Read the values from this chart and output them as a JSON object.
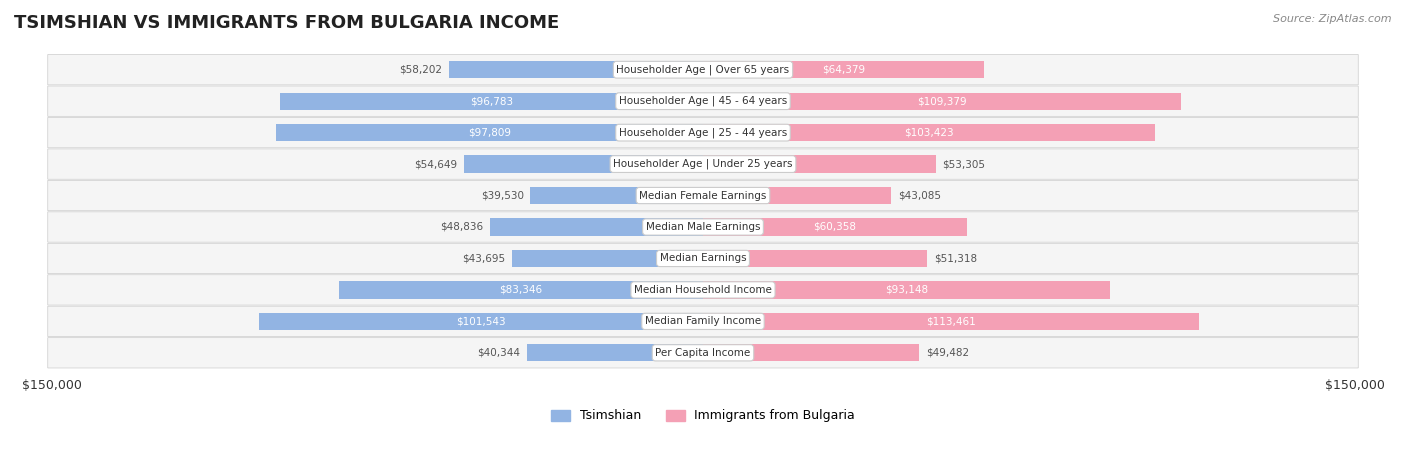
{
  "title": "TSIMSHIAN VS IMMIGRANTS FROM BULGARIA INCOME",
  "source": "Source: ZipAtlas.com",
  "categories": [
    "Per Capita Income",
    "Median Family Income",
    "Median Household Income",
    "Median Earnings",
    "Median Male Earnings",
    "Median Female Earnings",
    "Householder Age | Under 25 years",
    "Householder Age | 25 - 44 years",
    "Householder Age | 45 - 64 years",
    "Householder Age | Over 65 years"
  ],
  "tsimshian_values": [
    40344,
    101543,
    83346,
    43695,
    48836,
    39530,
    54649,
    97809,
    96783,
    58202
  ],
  "bulgaria_values": [
    49482,
    113461,
    93148,
    51318,
    60358,
    43085,
    53305,
    103423,
    109379,
    64379
  ],
  "tsimshian_labels": [
    "$40,344",
    "$101,543",
    "$83,346",
    "$43,695",
    "$48,836",
    "$39,530",
    "$54,649",
    "$97,809",
    "$96,783",
    "$58,202"
  ],
  "bulgaria_labels": [
    "$49,482",
    "$113,461",
    "$93,148",
    "$51,318",
    "$60,358",
    "$43,085",
    "$53,305",
    "$103,423",
    "$109,379",
    "$64,379"
  ],
  "tsimshian_color": "#92b4e3",
  "bulgaria_color": "#f4a0b5",
  "tsimshian_label_color_inside": "#ffffff",
  "tsimshian_label_color_outside": "#555555",
  "bulgaria_label_color_inside": "#ffffff",
  "bulgaria_label_color_outside": "#555555",
  "max_value": 150000,
  "legend_tsimshian": "Tsimshian",
  "legend_bulgaria": "Immigrants from Bulgaria",
  "xlabel_left": "$150,000",
  "xlabel_right": "$150,000",
  "background_color": "#ffffff",
  "row_bg_color": "#f0f0f0",
  "tsimshian_inside_threshold": 60000,
  "bulgaria_inside_threshold": 60000
}
